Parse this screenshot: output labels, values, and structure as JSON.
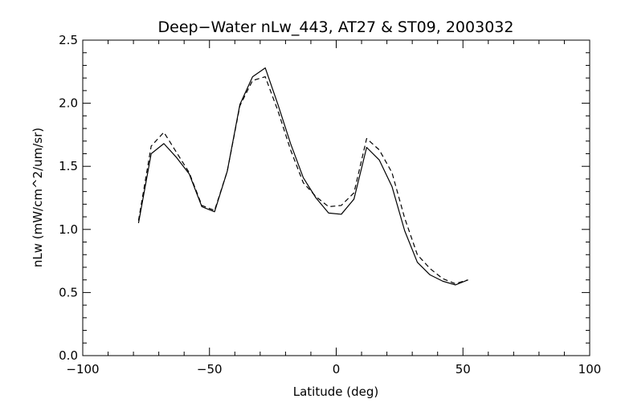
{
  "chart_data": {
    "type": "line",
    "title": "Deep−Water nLw_443, AT27 & ST09, 2003032",
    "xlabel": "Latitude (deg)",
    "ylabel": "nLw (mW/cm^2/um/sr)",
    "xlim": [
      -100,
      100
    ],
    "ylim": [
      0.0,
      2.5
    ],
    "x_ticks": [
      -100,
      -50,
      0,
      50,
      100
    ],
    "x_tick_labels": [
      "−100",
      "−50",
      "0",
      "50",
      "100"
    ],
    "y_ticks": [
      0.0,
      0.5,
      1.0,
      1.5,
      2.0,
      2.5
    ],
    "y_tick_labels": [
      "0.0",
      "0.5",
      "1.0",
      "1.5",
      "2.0",
      "2.5"
    ],
    "grid": false,
    "series": [
      {
        "style": "solid",
        "color": "#000000",
        "x": [
          -78,
          -73,
          -68,
          -63,
          -58,
          -53,
          -48,
          -43,
          -38,
          -33,
          -28,
          -23,
          -18,
          -13,
          -8,
          -3,
          2,
          7,
          12,
          17,
          22,
          27,
          32,
          37,
          42,
          47,
          52
        ],
        "y": [
          1.05,
          1.6,
          1.68,
          1.57,
          1.44,
          1.18,
          1.14,
          1.46,
          1.99,
          2.21,
          2.28,
          1.99,
          1.68,
          1.41,
          1.25,
          1.13,
          1.12,
          1.24,
          1.65,
          1.55,
          1.34,
          0.99,
          0.74,
          0.64,
          0.59,
          0.56,
          0.6
        ]
      },
      {
        "style": "dashed",
        "color": "#000000",
        "x": [
          -78,
          -73,
          -68,
          -63,
          -58,
          -53,
          -48,
          -43,
          -38,
          -33,
          -28,
          -23,
          -18,
          -13,
          -8,
          -3,
          2,
          7,
          12,
          17,
          22,
          27,
          32,
          37,
          42,
          47,
          52
        ],
        "y": [
          1.07,
          1.66,
          1.77,
          1.61,
          1.45,
          1.19,
          1.15,
          1.46,
          1.98,
          2.18,
          2.21,
          1.94,
          1.63,
          1.37,
          1.26,
          1.18,
          1.19,
          1.29,
          1.72,
          1.63,
          1.45,
          1.09,
          0.8,
          0.69,
          0.61,
          0.57,
          0.6
        ]
      }
    ]
  }
}
